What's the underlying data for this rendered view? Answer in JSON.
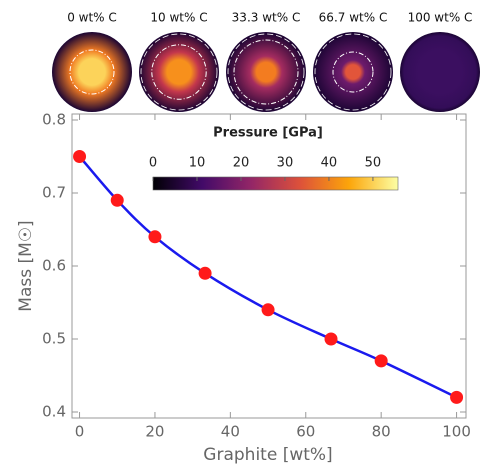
{
  "chart_data": {
    "type": "line",
    "panels": [
      "0 wt% C",
      "10 wt% C",
      "33.3 wt% C",
      "66.7 wt% C",
      "100 wt% C"
    ],
    "xlabel": "Graphite [wt%]",
    "ylabel": "Mass [M☉]",
    "x": [
      0,
      10,
      20,
      33.3,
      50,
      66.7,
      80,
      100
    ],
    "series": [
      {
        "color": "#1a1aee",
        "marker_color": "#ff1a1a",
        "values": [
          0.75,
          0.69,
          0.64,
          0.59,
          0.54,
          0.5,
          0.47,
          0.42
        ]
      }
    ],
    "xlim": [
      -2,
      102.5
    ],
    "ylim": [
      0.4,
      0.8
    ],
    "xticks": [
      0,
      20,
      40,
      60,
      80,
      100
    ],
    "yticks": [
      0.4,
      0.5,
      0.6,
      0.7,
      0.8
    ],
    "colorbar": {
      "title": "Pressure [GPa]",
      "lim": [
        0,
        55.7
      ],
      "ticks": [
        0,
        10,
        20,
        30,
        40,
        50
      ]
    }
  }
}
